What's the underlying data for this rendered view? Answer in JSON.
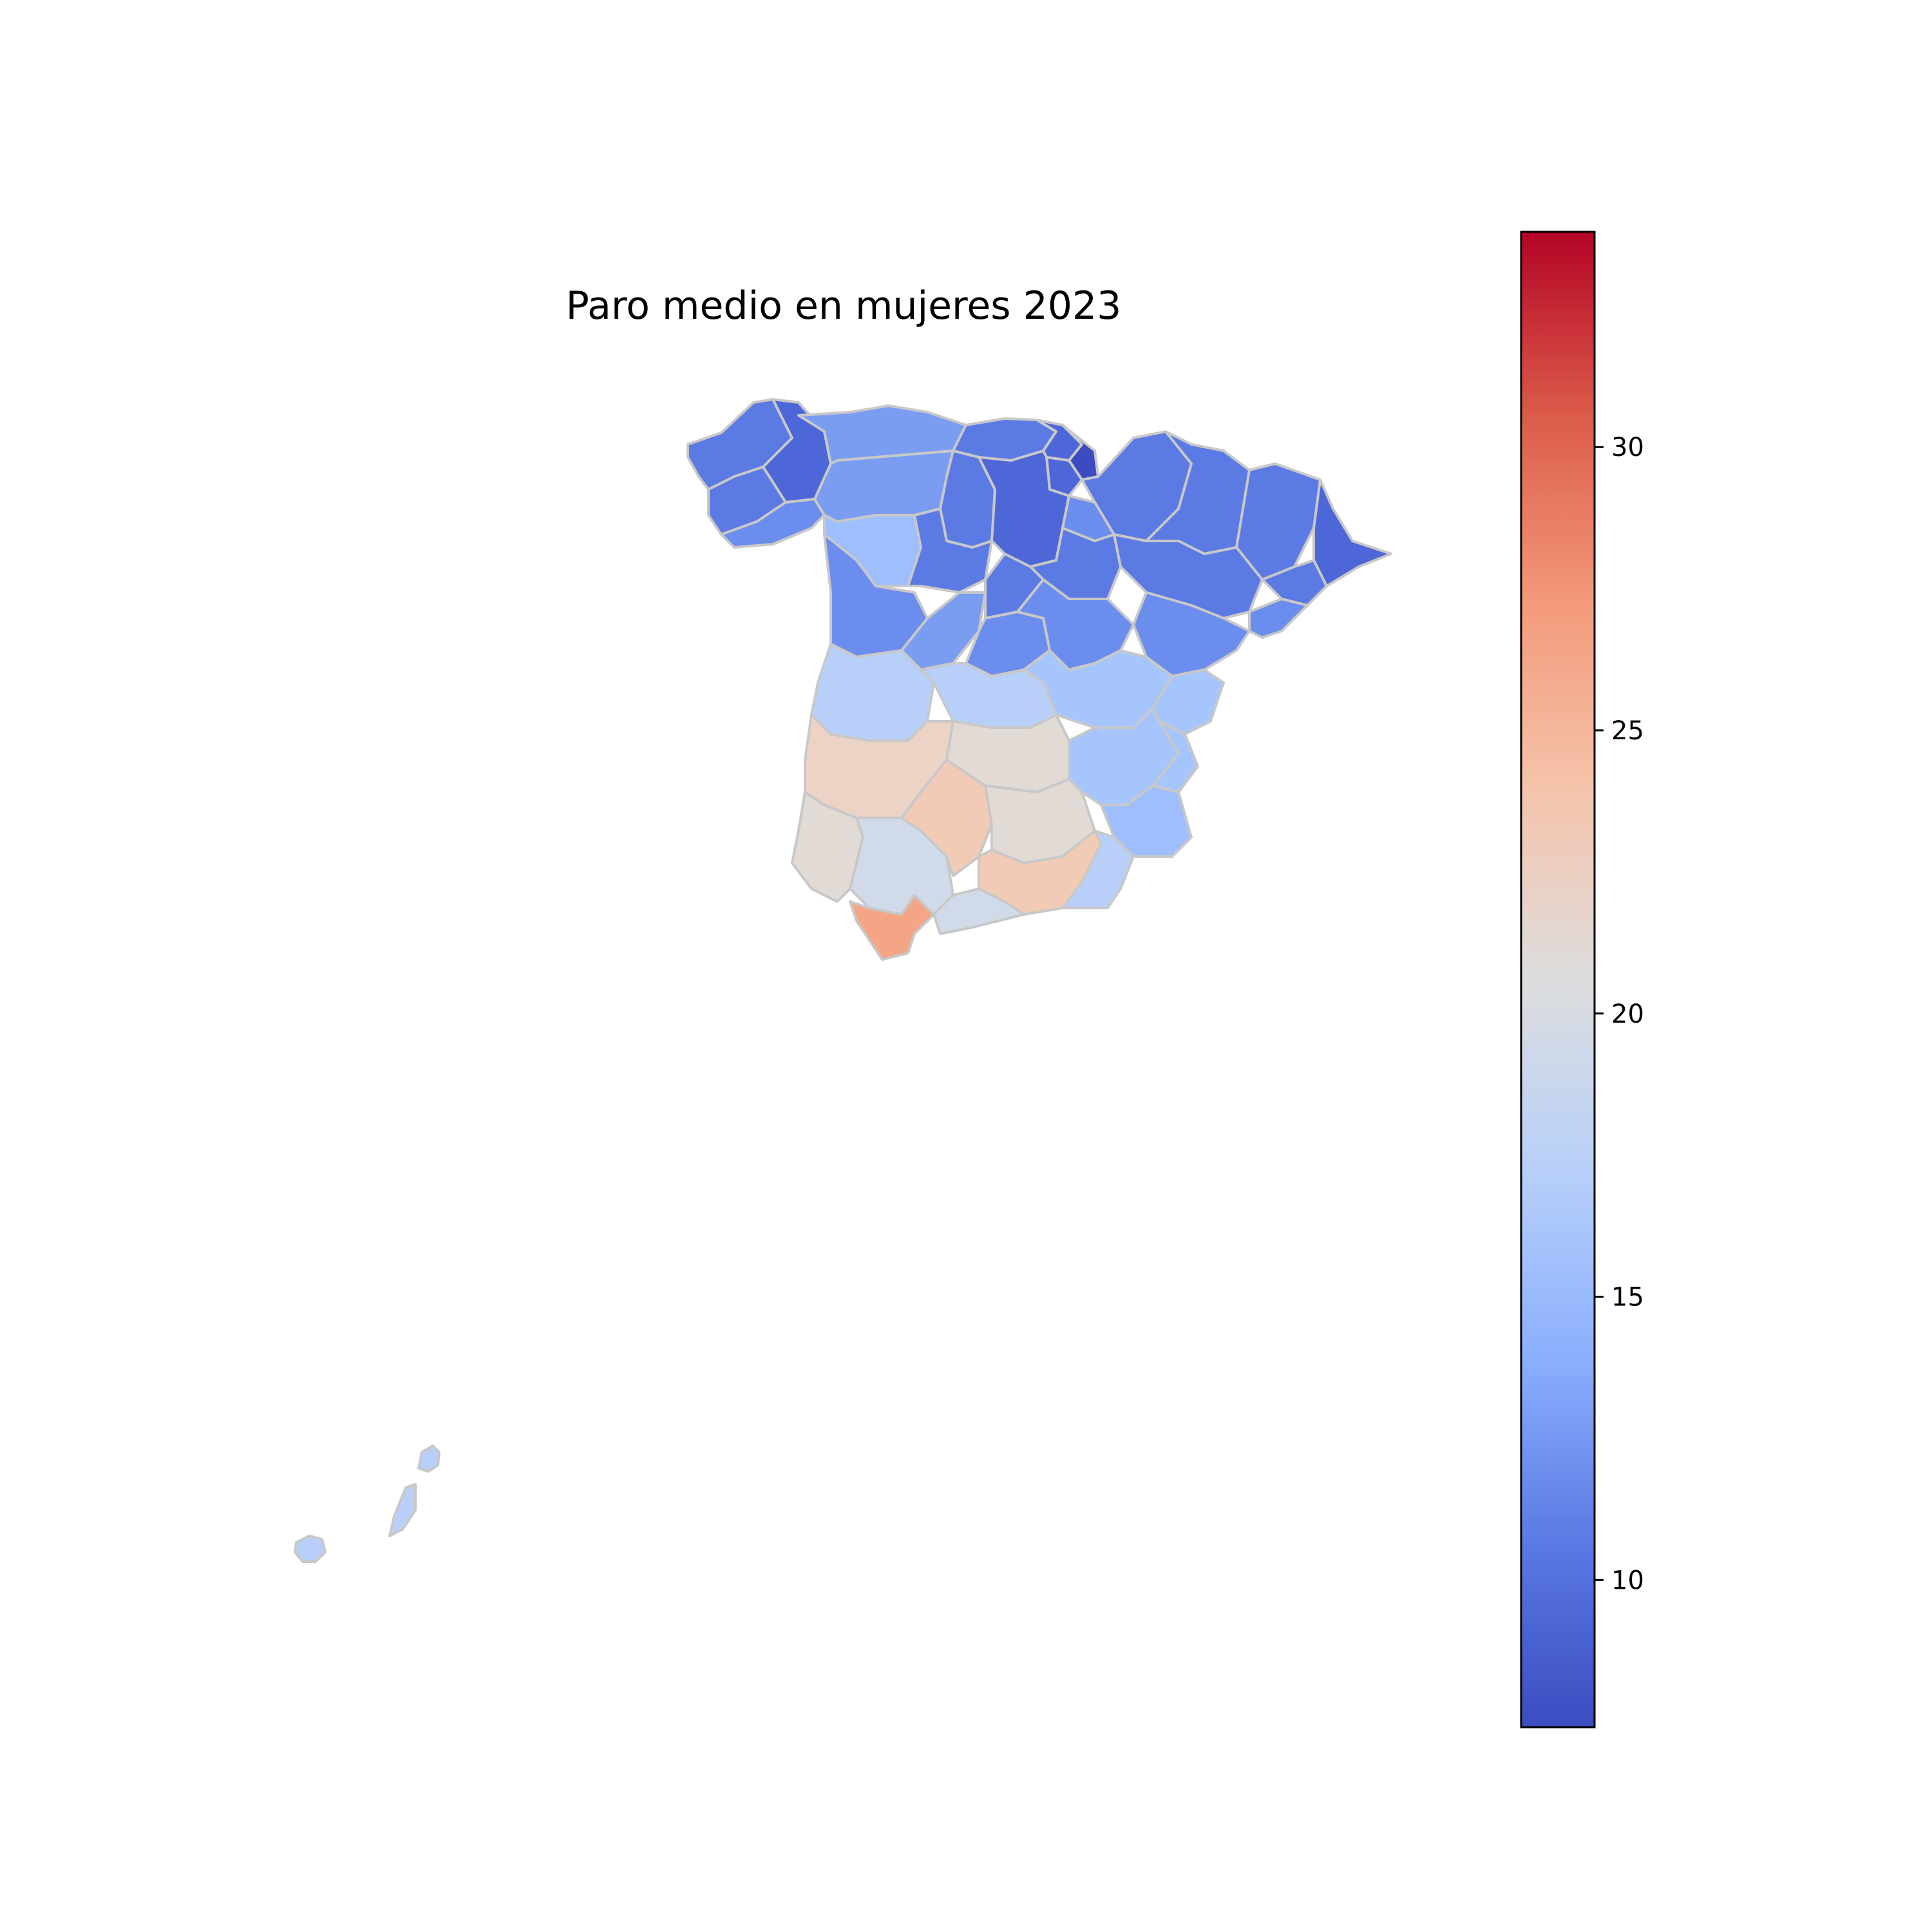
{
  "title": "Paro medio en mujeres 2023",
  "colormap": {
    "name": "coolwarm",
    "min": 7.4,
    "max": 33.8,
    "stops": [
      "#3b4cc0",
      "#5b7ae4",
      "#8db0fe",
      "#b8d0f9",
      "#dddddd",
      "#f5c4ac",
      "#f49a7b",
      "#dc5d4a",
      "#b40426"
    ]
  },
  "colorbar": {
    "ticks": [
      10,
      15,
      20,
      25,
      30
    ],
    "tick_labels": [
      "10",
      "15",
      "20",
      "25",
      "30"
    ]
  },
  "chart_data": {
    "type": "choropleth",
    "title": "Paro medio en mujeres 2023",
    "value_range": [
      7.4,
      33.8
    ],
    "regions_shown": "Spanish provinces (peninsula + Canary Islands)",
    "approx_value_bands": {
      "north_provinces": "≈9–13",
      "lowest_basque": "≈8",
      "central_plateau": "≈15–18",
      "south_andalusia": "≈20–24",
      "cadiz": "≈27",
      "canarias": "≈18"
    }
  }
}
